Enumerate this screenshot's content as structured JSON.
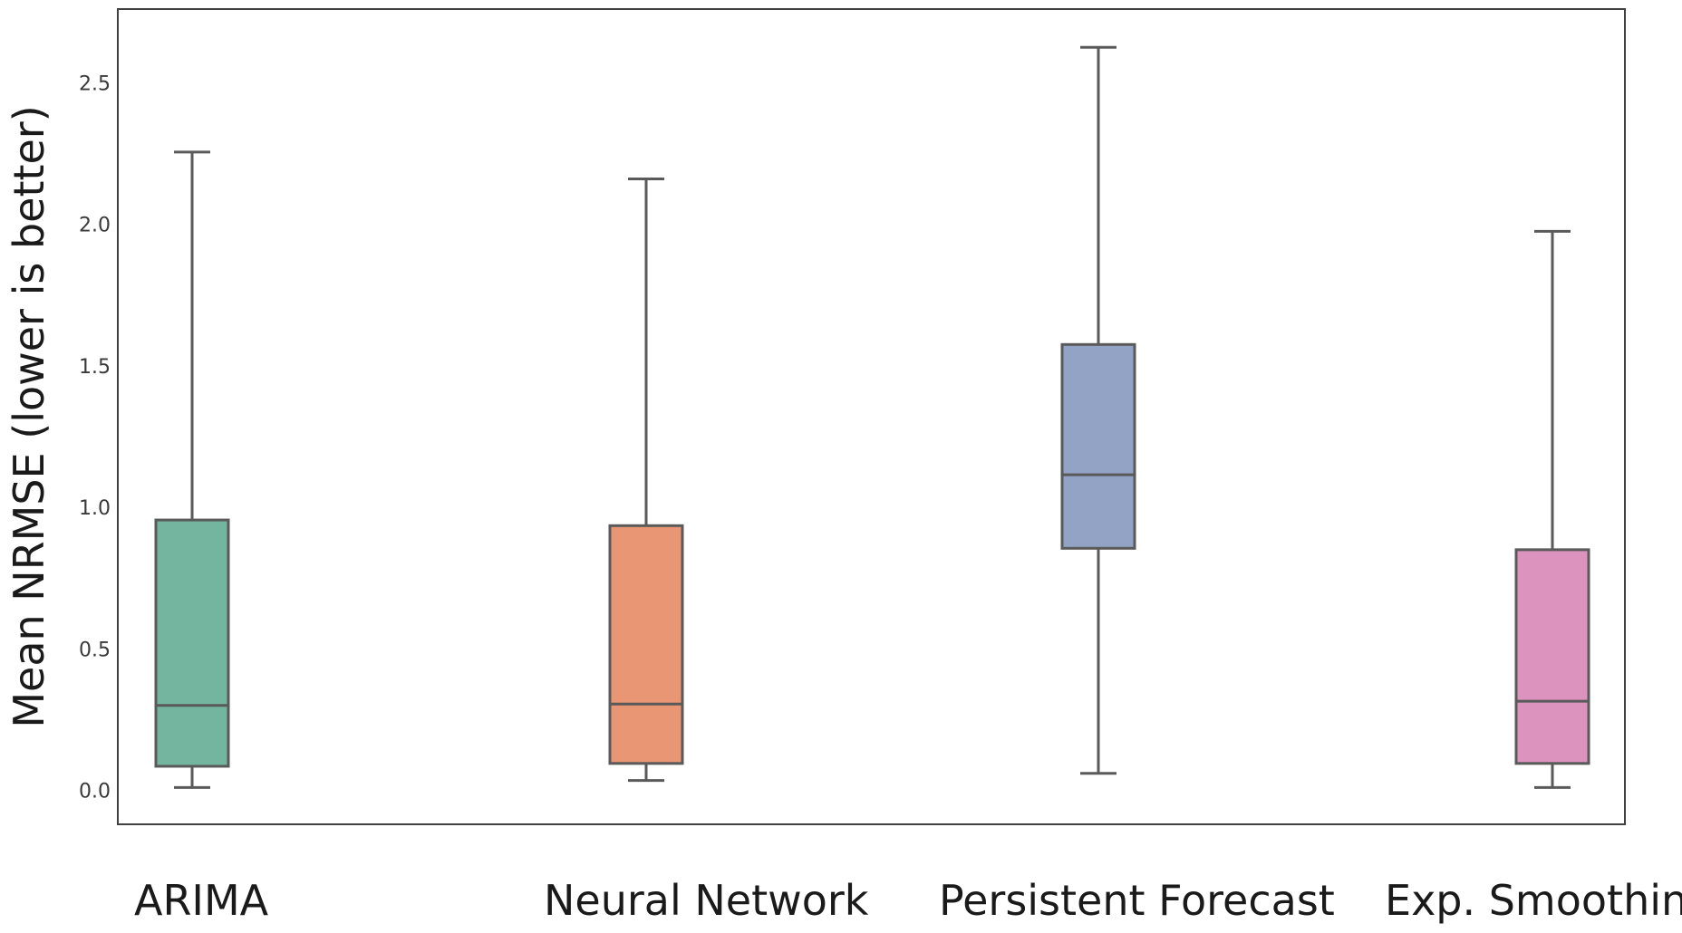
{
  "chart_data": {
    "type": "box",
    "title": "",
    "xlabel": "",
    "ylabel": "Mean NRMSE (lower is better)",
    "ylim": [
      -0.12,
      2.76
    ],
    "yticks": [
      0.0,
      0.5,
      1.0,
      1.5,
      2.0,
      2.5
    ],
    "ytick_labels": [
      "0.0",
      "0.5",
      "1.0",
      "1.5",
      "2.0",
      "2.5"
    ],
    "grid": false,
    "categories": [
      "ARIMA",
      "Neural Network",
      "Persistent Forecast",
      "Exp. Smoothing"
    ],
    "series": [
      {
        "category": "ARIMA",
        "color": "#73b59f",
        "whisker_low": 0.01,
        "q1": 0.085,
        "median": 0.3,
        "q3": 0.955,
        "whisker_high": 2.255
      },
      {
        "category": "Neural Network",
        "color": "#e89673",
        "whisker_low": 0.035,
        "q1": 0.095,
        "median": 0.305,
        "q3": 0.935,
        "whisker_high": 2.16
      },
      {
        "category": "Persistent Forecast",
        "color": "#93a3c5",
        "whisker_low": 0.06,
        "q1": 0.855,
        "median": 1.115,
        "q3": 1.575,
        "whisker_high": 2.625
      },
      {
        "category": "Exp. Smoothing",
        "color": "#dc93be",
        "whisker_low": 0.01,
        "q1": 0.095,
        "median": 0.315,
        "q3": 0.85,
        "whisker_high": 1.975
      }
    ],
    "style": {
      "line_color": "#5a5a5a",
      "frame_color": "#404040"
    }
  }
}
